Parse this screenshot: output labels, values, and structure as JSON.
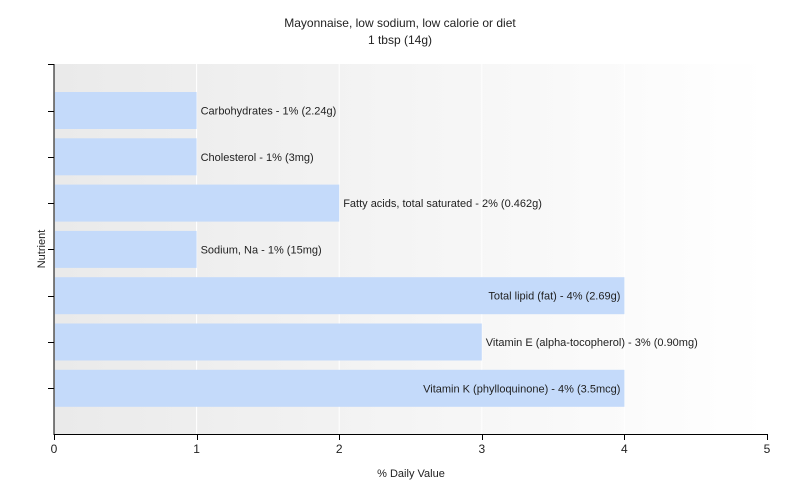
{
  "chart_data": {
    "type": "bar",
    "orientation": "horizontal",
    "title": "Mayonnaise, low sodium, low calorie or diet",
    "subtitle": "1 tbsp (14g)",
    "xlabel": "% Daily Value",
    "ylabel": "Nutrient",
    "xlim": [
      0,
      5
    ],
    "xticks": [
      0,
      1,
      2,
      3,
      4,
      5
    ],
    "grid": true,
    "categories": [
      "Carbohydrates",
      "Cholesterol",
      "Fatty acids, total saturated",
      "Sodium, Na",
      "Total lipid (fat)",
      "Vitamin E (alpha-tocopherol)",
      "Vitamin K (phylloquinone)"
    ],
    "values": [
      1,
      1,
      2,
      1,
      4,
      3,
      4
    ],
    "data_labels": [
      "Carbohydrates - 1% (2.24g)",
      "Cholesterol - 1% (3mg)",
      "Fatty acids, total saturated - 2% (0.462g)",
      "Sodium, Na - 1% (15mg)",
      "Total lipid (fat) - 4% (2.69g)",
      "Vitamin E (alpha-tocopherol) - 3% (0.90mg)",
      "Vitamin K (phylloquinone) - 4% (3.5mcg)"
    ],
    "colors": {
      "bar": "#c4dafa",
      "plot_background_start": "#eaeaea",
      "plot_background_end": "#ffffff",
      "grid": "#ffffff",
      "axis": "#000000"
    }
  }
}
